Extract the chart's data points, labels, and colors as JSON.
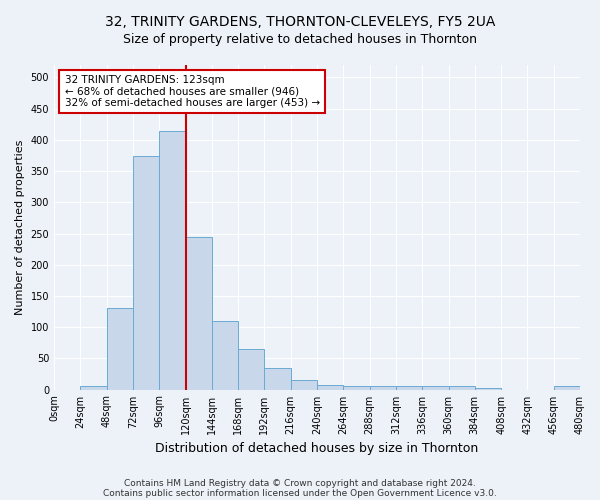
{
  "title": "32, TRINITY GARDENS, THORNTON-CLEVELEYS, FY5 2UA",
  "subtitle": "Size of property relative to detached houses in Thornton",
  "xlabel": "Distribution of detached houses by size in Thornton",
  "ylabel": "Number of detached properties",
  "footnote1": "Contains HM Land Registry data © Crown copyright and database right 2024.",
  "footnote2": "Contains public sector information licensed under the Open Government Licence v3.0.",
  "bar_values": [
    0,
    5,
    130,
    375,
    415,
    245,
    110,
    65,
    35,
    15,
    8,
    5,
    5,
    5,
    5,
    5,
    3,
    0,
    0,
    5
  ],
  "bin_labels": [
    "0sqm",
    "24sqm",
    "48sqm",
    "72sqm",
    "96sqm",
    "120sqm",
    "144sqm",
    "168sqm",
    "192sqm",
    "216sqm",
    "240sqm",
    "264sqm",
    "288sqm",
    "312sqm",
    "336sqm",
    "360sqm",
    "384sqm",
    "408sqm",
    "432sqm",
    "456sqm",
    "480sqm"
  ],
  "bar_color": "#c8d8ea",
  "bar_edge_color": "#6aaad4",
  "vline_color": "#cc0000",
  "annotation_text": "32 TRINITY GARDENS: 123sqm\n← 68% of detached houses are smaller (946)\n32% of semi-detached houses are larger (453) →",
  "annotation_box_color": "#ffffff",
  "annotation_box_edge": "#cc0000",
  "ylim": [
    0,
    520
  ],
  "yticks": [
    0,
    50,
    100,
    150,
    200,
    250,
    300,
    350,
    400,
    450,
    500
  ],
  "bg_color": "#edf2f8",
  "plot_bg_color": "#edf2f8",
  "grid_color": "#ffffff",
  "title_fontsize": 10,
  "subtitle_fontsize": 9,
  "xlabel_fontsize": 9,
  "ylabel_fontsize": 8,
  "tick_fontsize": 7,
  "annot_fontsize": 7.5,
  "footnote_fontsize": 6.5
}
